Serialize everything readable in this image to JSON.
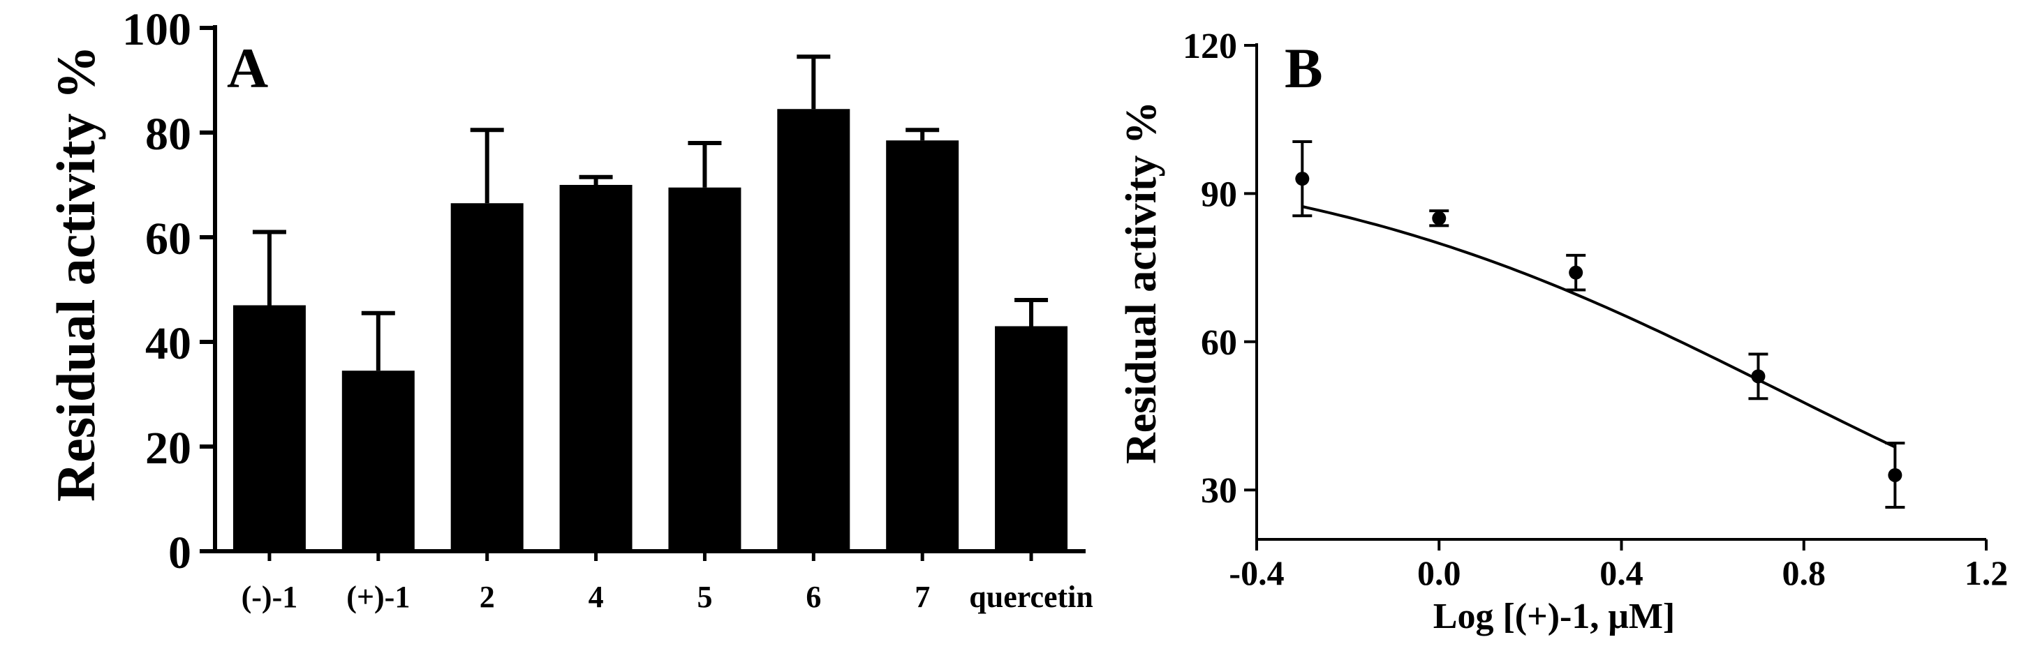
{
  "chart_data": [
    {
      "type": "bar",
      "panel_label": "A",
      "ylabel": "Residual activity %",
      "xlabel": "",
      "ylim": [
        0,
        100
      ],
      "yticks": [
        0,
        20,
        40,
        60,
        80,
        100
      ],
      "categories": [
        "(-)-1",
        "(+)-1",
        "2",
        "4",
        "5",
        "6",
        "7",
        "quercetin"
      ],
      "values": [
        47,
        34.5,
        66.5,
        70,
        69.5,
        84.5,
        78.5,
        43
      ],
      "errors": [
        14,
        11,
        14,
        1.5,
        8.5,
        10,
        2,
        5
      ],
      "colors": {
        "bar": "#000000"
      }
    },
    {
      "type": "scatter",
      "panel_label": "B",
      "ylabel": "Residual activity %",
      "xlabel": "Log [(+)-1, μM]",
      "xlim": [
        -0.4,
        1.2
      ],
      "ylim": [
        20,
        120
      ],
      "xticks": [
        -0.4,
        0.0,
        0.4,
        0.8,
        1.2
      ],
      "xtick_labels": [
        "-0.4",
        "0.0",
        "0.4",
        "0.8",
        "1.2"
      ],
      "yticks": [
        30,
        60,
        90,
        120
      ],
      "x": [
        -0.3,
        0.0,
        0.3,
        0.7,
        1.0
      ],
      "y": [
        93,
        85,
        74,
        53,
        33
      ],
      "errors": [
        7.5,
        1.5,
        3.5,
        4.5,
        6.5
      ],
      "fit_curve": {
        "type": "sigmoidal dose-response",
        "top": 100,
        "bottom": 0,
        "log_ic50": 0.75,
        "hill": -0.8
      }
    }
  ]
}
